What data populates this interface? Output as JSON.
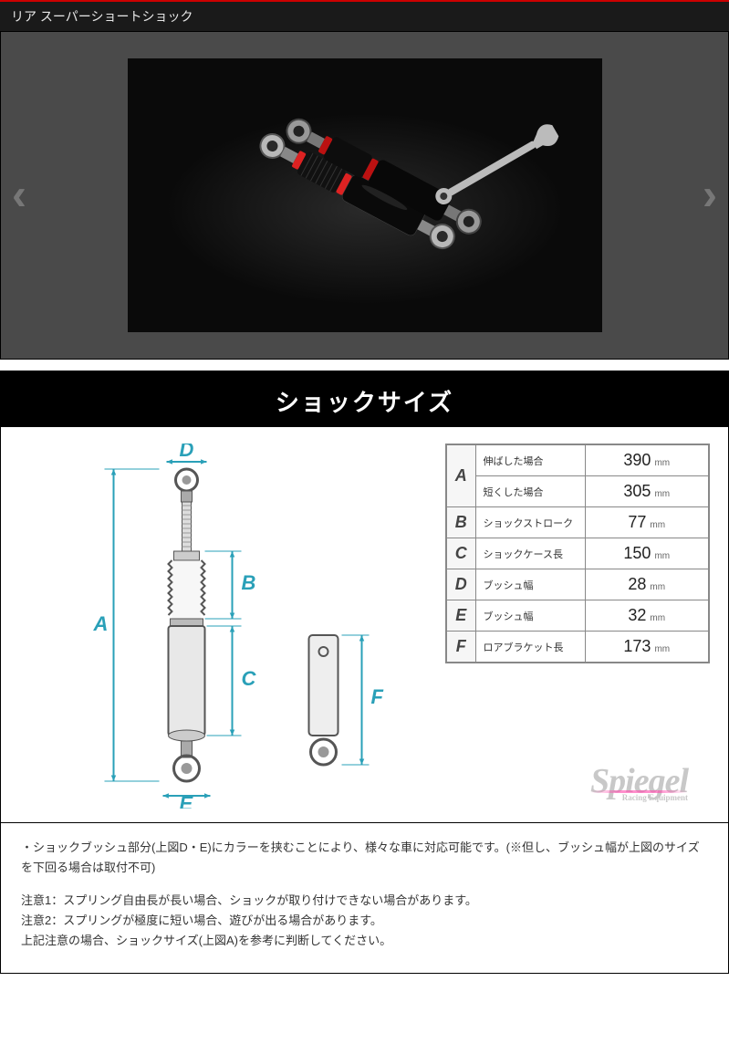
{
  "header": {
    "title": "リア スーパーショートショック"
  },
  "carousel": {
    "prev_glyph": "‹",
    "next_glyph": "›"
  },
  "spec": {
    "panel_title": "ショックサイズ",
    "diagram_color": "#2aa0b8",
    "label_color": "#2aa0b8",
    "unit": "mm",
    "rows": [
      {
        "key": "A",
        "label": "伸ばした場合",
        "value": "390",
        "rowspan": 2
      },
      {
        "key": "A",
        "label": "短くした場合",
        "value": "305"
      },
      {
        "key": "B",
        "label": "ショックストローク",
        "value": "77"
      },
      {
        "key": "C",
        "label": "ショックケース長",
        "value": "150"
      },
      {
        "key": "D",
        "label": "ブッシュ幅",
        "value": "28"
      },
      {
        "key": "E",
        "label": "ブッシュ幅",
        "value": "32"
      },
      {
        "key": "F",
        "label": "ロアブラケット長",
        "value": "173"
      }
    ],
    "brand": {
      "name": "Spiegel",
      "sub": "Racing Equipment"
    }
  },
  "notes": {
    "line1": "・ショックブッシュ部分(上図D・E)にカラーを挟むことにより、様々な車に対応可能です。(※但し、ブッシュ幅が上図のサイズを下回る場合は取付不可)",
    "line2": "注意1：スプリング自由長が長い場合、ショックが取り付けできない場合があります。",
    "line3": "注意2：スプリングが極度に短い場合、遊びが出る場合があります。",
    "line4": "上記注意の場合、ショックサイズ(上図A)を参考に判断してください。"
  }
}
